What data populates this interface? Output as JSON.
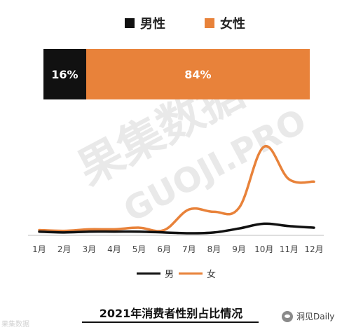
{
  "legend_top": [
    {
      "label": "男性",
      "color": "#111111"
    },
    {
      "label": "女性",
      "color": "#E8823A"
    }
  ],
  "gender_bar": {
    "male_pct": 16,
    "female_pct": 84,
    "male_label": "16%",
    "female_label": "84%"
  },
  "watermark": {
    "line1": "果集数据",
    "line2": "GUOJI.PRO",
    "corner": "果集数据"
  },
  "chart_data": {
    "type": "line",
    "title": "2021年消费者性别占比情况",
    "x": [
      "1月",
      "2月",
      "3月",
      "4月",
      "5月",
      "6月",
      "7月",
      "8月",
      "9月",
      "10月",
      "11月",
      "12月"
    ],
    "series": [
      {
        "name": "男",
        "color": "#111111",
        "values": [
          2,
          1,
          2,
          2,
          2,
          1,
          0,
          1,
          6,
          12,
          9,
          7
        ]
      },
      {
        "name": "女",
        "color": "#E8823A",
        "values": [
          4,
          3,
          5,
          5,
          7,
          4,
          30,
          27,
          32,
          109,
          68,
          65
        ]
      }
    ],
    "xlabel": "",
    "ylabel": "",
    "ylim": [
      0,
      120
    ],
    "grid": false,
    "legend_position": "bottom"
  },
  "brand": {
    "label": "洞见Daily"
  }
}
